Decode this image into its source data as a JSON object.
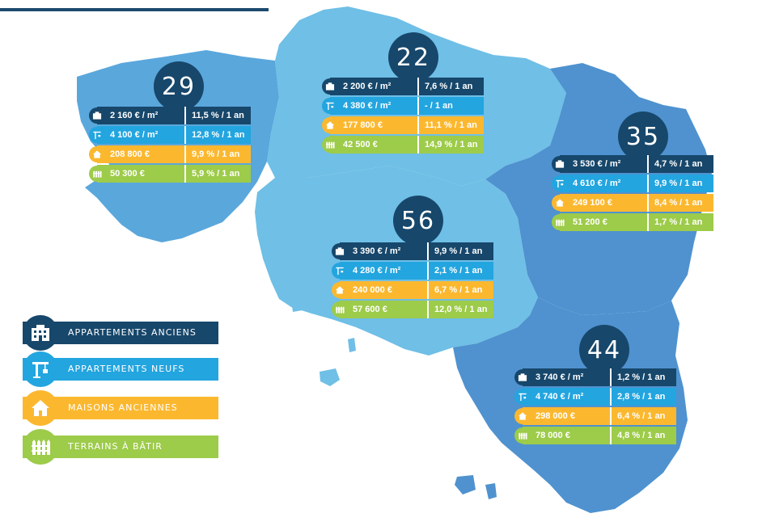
{
  "colors": {
    "anciens": "#17476b",
    "neufs": "#23a5df",
    "maisons": "#fbb82f",
    "terrains": "#9dcb4a",
    "map_light": "#6fbfe6",
    "map_mid": "#5aa7dc",
    "map_dark": "#4f92cf"
  },
  "legend": [
    {
      "label": "APPARTEMENTS ANCIENS",
      "icon": "building-icon"
    },
    {
      "label": "APPARTEMENTS NEUFS",
      "icon": "crane-icon"
    },
    {
      "label": "MAISONS ANCIENNES",
      "icon": "house-icon"
    },
    {
      "label": "TERRAINS À BÂTIR",
      "icon": "fence-icon"
    }
  ],
  "departments": [
    {
      "code": "29",
      "rows": [
        {
          "price": "2 160 € / m²",
          "change": "11,5 % / 1 an"
        },
        {
          "price": "4 100 € / m²",
          "change": "12,8 % / 1 an"
        },
        {
          "price": "208 800 €",
          "change": "9,9 % / 1 an"
        },
        {
          "price": "50 300 €",
          "change": "5,9 % / 1 an"
        }
      ]
    },
    {
      "code": "22",
      "rows": [
        {
          "price": "2 200 € / m²",
          "change": "7,6 % / 1 an"
        },
        {
          "price": "4 380 € / m²",
          "change": "- / 1 an"
        },
        {
          "price": "177 800 €",
          "change": "11,1 % / 1 an"
        },
        {
          "price": "42 500 €",
          "change": "14,9 % / 1 an"
        }
      ]
    },
    {
      "code": "35",
      "rows": [
        {
          "price": "3 530 € / m²",
          "change": "4,7 % / 1 an"
        },
        {
          "price": "4 610 € / m²",
          "change": "9,9 % / 1 an"
        },
        {
          "price": "249 100 €",
          "change": "8,4 % / 1 an"
        },
        {
          "price": "51 200 €",
          "change": "1,7 % / 1 an"
        }
      ]
    },
    {
      "code": "56",
      "rows": [
        {
          "price": "3 390 € / m²",
          "change": "9,9 % / 1 an"
        },
        {
          "price": "4 280 € / m²",
          "change": "2,1 % / 1 an"
        },
        {
          "price": "240 000 €",
          "change": "6,7 % / 1 an"
        },
        {
          "price": "57 600 €",
          "change": "12,0 % / 1 an"
        }
      ]
    },
    {
      "code": "44",
      "rows": [
        {
          "price": "3 740 € / m²",
          "change": "1,2 % / 1 an"
        },
        {
          "price": "4 740 € / m²",
          "change": "2,8 % / 1 an"
        },
        {
          "price": "298 000 €",
          "change": "6,4 % / 1 an"
        },
        {
          "price": "78 000 €",
          "change": "4,8 % / 1 an"
        }
      ]
    }
  ]
}
